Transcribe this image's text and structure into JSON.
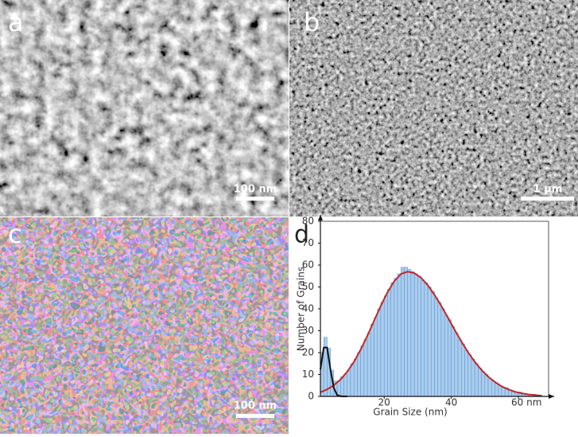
{
  "panels": [
    {
      "label": "a",
      "scale_bar": "100 nm"
    },
    {
      "label": "b",
      "scale_bar": "1 µm"
    },
    {
      "label": "c",
      "scale_bar": "100 nm"
    }
  ],
  "chart_data": {
    "type": "histogram",
    "label": "d",
    "x_label": "Grain Size (nm)",
    "y_label": "Number of Grains",
    "color": "#a9cdef",
    "edge_color": "#5b8fc4",
    "bins": [
      1,
      2,
      3,
      4,
      5,
      6,
      7,
      8,
      9,
      10,
      11,
      12,
      13,
      14,
      15,
      16,
      17,
      18,
      19,
      20,
      21,
      22,
      23,
      24,
      25,
      26,
      27,
      28,
      29,
      30,
      31,
      32,
      33,
      34,
      35,
      36,
      37,
      38,
      39,
      40,
      41,
      42,
      43,
      44,
      45,
      46,
      47,
      48,
      49,
      50,
      51,
      52,
      53,
      54,
      55,
      56,
      57,
      58,
      59,
      60,
      61,
      62,
      63,
      64,
      65,
      66,
      67
    ],
    "values": [
      20,
      27,
      22,
      12,
      7,
      7,
      9,
      10,
      12,
      15,
      17,
      20,
      23,
      26,
      29,
      33,
      36,
      40,
      43,
      46,
      49,
      52,
      54,
      56,
      59,
      59,
      58,
      57,
      56,
      55,
      53,
      52,
      50,
      48,
      45,
      43,
      40,
      37,
      35,
      32,
      29,
      26,
      24,
      21,
      19,
      17,
      15,
      13,
      11,
      10,
      8,
      7,
      6,
      5,
      4,
      4,
      3,
      2,
      2,
      2,
      1,
      1,
      1,
      1,
      0,
      0
    ],
    "lines": [
      {
        "color": "#c0282a",
        "x": [
          1,
          3,
          5,
          7,
          9,
          11,
          13,
          15,
          17,
          19,
          21,
          23,
          25,
          27,
          29,
          31,
          33,
          35,
          37,
          39,
          41,
          43,
          45,
          47,
          49,
          51,
          53,
          55,
          57,
          59,
          61,
          63,
          65,
          67
        ],
        "values": [
          1.9,
          3.2,
          5.1,
          7.7,
          11.3,
          15.8,
          21.4,
          27.7,
          34.6,
          41.4,
          47.6,
          52.6,
          55.9,
          57,
          56.3,
          54.2,
          50.8,
          46.4,
          41.4,
          36.0,
          30.4,
          25.1,
          20.2,
          15.8,
          12.1,
          9.0,
          6.6,
          4.6,
          3.2,
          2.1,
          1.4,
          0.9,
          0.6,
          0.3
        ]
      },
      {
        "color": "#111111",
        "x": [
          1,
          2,
          3,
          4,
          5,
          6,
          7,
          8,
          9
        ],
        "values": [
          12.3,
          22.3,
          22.3,
          12.3,
          3.8,
          0.6,
          0.1,
          0,
          0
        ]
      }
    ],
    "xlim": [
      1,
      69
    ],
    "ylim": [
      0,
      80
    ],
    "xticks": [
      20,
      40,
      {
        "value": 60,
        "label": "60 nm"
      }
    ],
    "yticks": [
      0,
      10,
      20,
      30,
      40,
      50,
      60,
      70,
      80
    ],
    "grid": false
  }
}
